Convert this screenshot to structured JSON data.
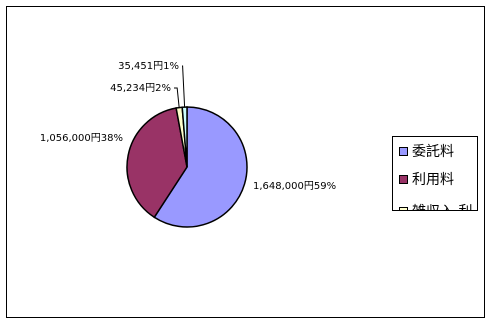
{
  "chart_data": {
    "type": "pie",
    "slices": [
      {
        "name": "委託料",
        "value": 1648000,
        "label": "1,648,000円59%",
        "color": "#9999ff"
      },
      {
        "name": "利用料",
        "value": 1056000,
        "label": "1,056,000円38%",
        "color": "#993366"
      },
      {
        "name": "雑収入",
        "value": 45234,
        "label": "45,234円2%",
        "color": "#ffffcc"
      },
      {
        "name": "",
        "value": 35451,
        "label": "35,451円1%",
        "color": "#ccffff"
      }
    ],
    "legend": {
      "placement": "right",
      "items": [
        {
          "label": "委託料",
          "color": "#9999ff"
        },
        {
          "label": "利用料",
          "color": "#993366"
        },
        {
          "label": "雑収入 利",
          "color": "#ffffcc"
        }
      ]
    }
  }
}
